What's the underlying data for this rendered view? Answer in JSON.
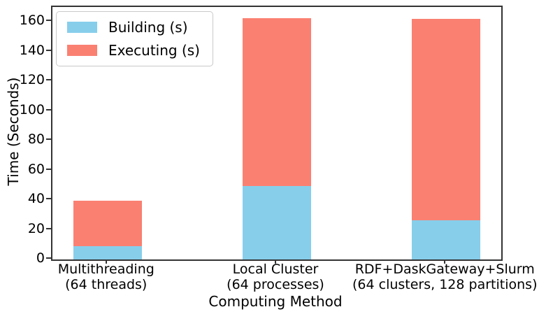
{
  "chart_data": {
    "type": "bar",
    "stacked": true,
    "title": "",
    "xlabel": "Computing Method",
    "ylabel": "Time (Seconds)",
    "categories": [
      {
        "line1": "Multithreading",
        "line2": "(64 threads)"
      },
      {
        "line1": "Local Cluster",
        "line2": "(64 processes)"
      },
      {
        "line1": "RDF+DaskGateway+Slurm",
        "line2": "(64 clusters, 128 partitions)"
      }
    ],
    "series": [
      {
        "name": "Building (s)",
        "color": "#87CEEB",
        "values": [
          9,
          49.5,
          26.5
        ]
      },
      {
        "name": "Executing (s)",
        "color": "#FA8072",
        "values": [
          30.5,
          113,
          135.5
        ]
      }
    ],
    "totals": [
      39.5,
      162.5,
      162
    ],
    "yticks": [
      0,
      20,
      40,
      60,
      80,
      100,
      120,
      140,
      160
    ],
    "ylim": [
      0,
      170
    ],
    "grid": false,
    "legend_position": "upper-left"
  },
  "colors": {
    "building": "#87CEEB",
    "executing": "#FA8072",
    "spine": "#333333",
    "text": "#000000"
  }
}
